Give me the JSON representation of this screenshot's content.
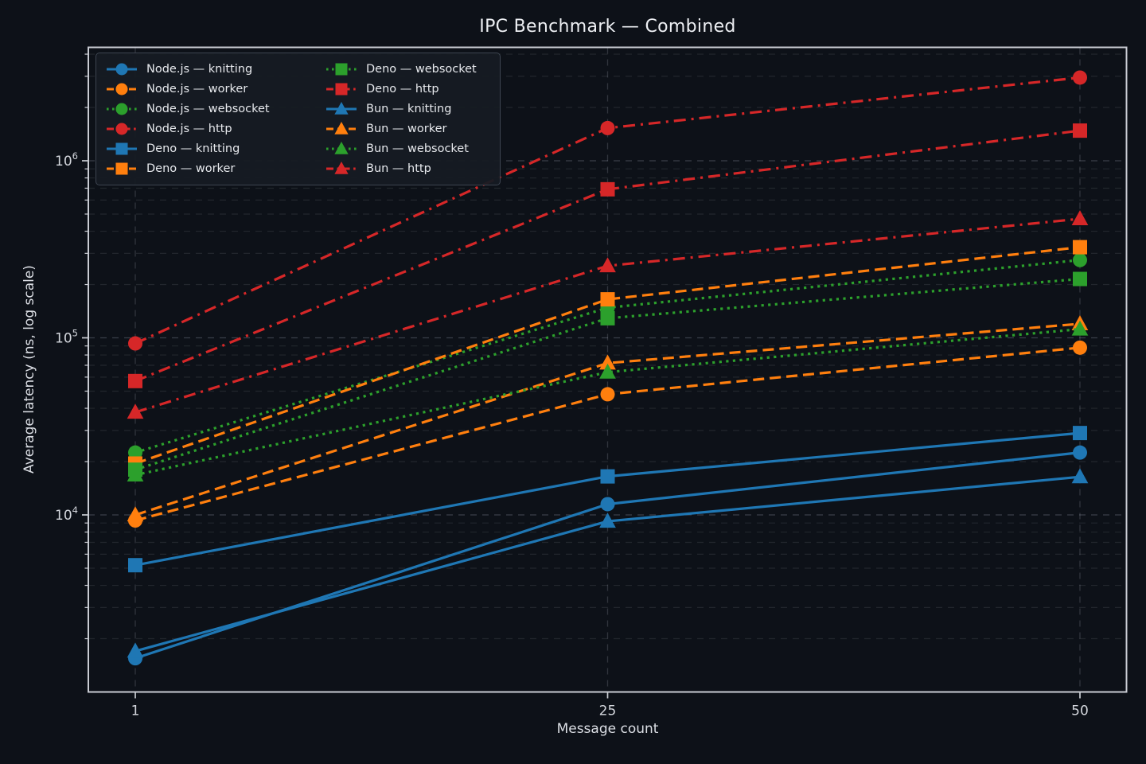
{
  "title": "IPC Benchmark — Combined",
  "axes": {
    "xlabel": "Message count",
    "ylabel": "Average latency (ns, log scale)",
    "x_ticks": [
      "1",
      "25",
      "50"
    ],
    "y_ticks": [
      {
        "base": "10",
        "exp": "4",
        "value": 10000
      },
      {
        "base": "10",
        "exp": "5",
        "value": 100000
      },
      {
        "base": "10",
        "exp": "6",
        "value": 1000000
      }
    ]
  },
  "colors": {
    "background": "#0d1118",
    "legend_background": "#161b23",
    "legend_border": "#3d4450",
    "grid": "#b0b8c4",
    "spine": "#c9ccd3",
    "text": "#e7e9ed",
    "blue": "#1f77b4",
    "orange": "#ff7f0e",
    "green": "#2ca02c",
    "red": "#d62728"
  },
  "chart_data": {
    "type": "line",
    "title": "IPC Benchmark — Combined",
    "xlabel": "Message count",
    "ylabel": "Average latency (ns, log scale)",
    "x": [
      1,
      25,
      50
    ],
    "yscale": "log",
    "ylim": [
      1000,
      4400000
    ],
    "grid": true,
    "legend_position": "upper-left",
    "legend_columns": 2,
    "series": [
      {
        "name": "Node.js — knitting",
        "color": "#1f77b4",
        "marker": "circle",
        "linestyle": "solid",
        "values": [
          1550,
          11500,
          22500
        ]
      },
      {
        "name": "Node.js — worker",
        "color": "#ff7f0e",
        "marker": "circle",
        "linestyle": "dashed",
        "values": [
          9300,
          48000,
          88000
        ]
      },
      {
        "name": "Node.js — websocket",
        "color": "#2ca02c",
        "marker": "circle",
        "linestyle": "dotted",
        "values": [
          22500,
          148000,
          275000
        ]
      },
      {
        "name": "Node.js — http",
        "color": "#d62728",
        "marker": "circle",
        "linestyle": "dashdot",
        "values": [
          93000,
          1530000,
          2950000
        ]
      },
      {
        "name": "Deno — knitting",
        "color": "#1f77b4",
        "marker": "square",
        "linestyle": "solid",
        "values": [
          5200,
          16500,
          29000
        ]
      },
      {
        "name": "Deno — worker",
        "color": "#ff7f0e",
        "marker": "square",
        "linestyle": "dashed",
        "values": [
          19500,
          165000,
          325000
        ]
      },
      {
        "name": "Deno — websocket",
        "color": "#2ca02c",
        "marker": "square",
        "linestyle": "dotted",
        "values": [
          18000,
          129000,
          215000
        ]
      },
      {
        "name": "Deno — http",
        "color": "#d62728",
        "marker": "square",
        "linestyle": "dashdot",
        "values": [
          57000,
          690000,
          1480000
        ]
      },
      {
        "name": "Bun — knitting",
        "color": "#1f77b4",
        "marker": "triangle",
        "linestyle": "solid",
        "values": [
          1700,
          9200,
          16400
        ]
      },
      {
        "name": "Bun — worker",
        "color": "#ff7f0e",
        "marker": "triangle",
        "linestyle": "dashed",
        "values": [
          10000,
          72000,
          120000
        ]
      },
      {
        "name": "Bun — websocket",
        "color": "#2ca02c",
        "marker": "triangle",
        "linestyle": "dotted",
        "values": [
          16800,
          64000,
          112000
        ]
      },
      {
        "name": "Bun — http",
        "color": "#d62728",
        "marker": "triangle",
        "linestyle": "dashdot",
        "values": [
          38000,
          255000,
          470000
        ]
      }
    ]
  }
}
